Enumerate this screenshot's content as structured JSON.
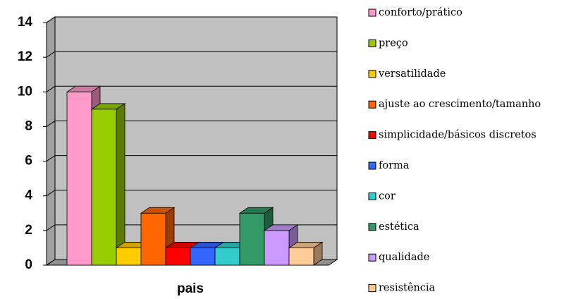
{
  "chart_data": {
    "type": "bar3d",
    "categories": [
      "pais"
    ],
    "series": [
      {
        "name": "conforto/prático",
        "color": "#ff99cc",
        "values": [
          10
        ]
      },
      {
        "name": "preço",
        "color": "#99cc00",
        "values": [
          9
        ]
      },
      {
        "name": "versatilidade",
        "color": "#ffcc00",
        "values": [
          1
        ]
      },
      {
        "name": "ajuste ao crescimento/tamanho",
        "color": "#ff6600",
        "values": [
          3
        ]
      },
      {
        "name": "simplicidade/básicos discretos",
        "color": "#ff0000",
        "values": [
          1
        ]
      },
      {
        "name": "forma",
        "color": "#3366ff",
        "values": [
          1
        ]
      },
      {
        "name": "cor",
        "color": "#33cccc",
        "values": [
          1
        ]
      },
      {
        "name": "estética",
        "color": "#339966",
        "values": [
          3
        ]
      },
      {
        "name": "qualidade",
        "color": "#cc99ff",
        "values": [
          2
        ]
      },
      {
        "name": "resistência",
        "color": "#ffcc99",
        "values": [
          1
        ]
      }
    ],
    "ylim": [
      0,
      14
    ],
    "yticks": [
      0,
      2,
      4,
      6,
      8,
      10,
      12,
      14
    ],
    "grid": true,
    "legend": "right"
  }
}
